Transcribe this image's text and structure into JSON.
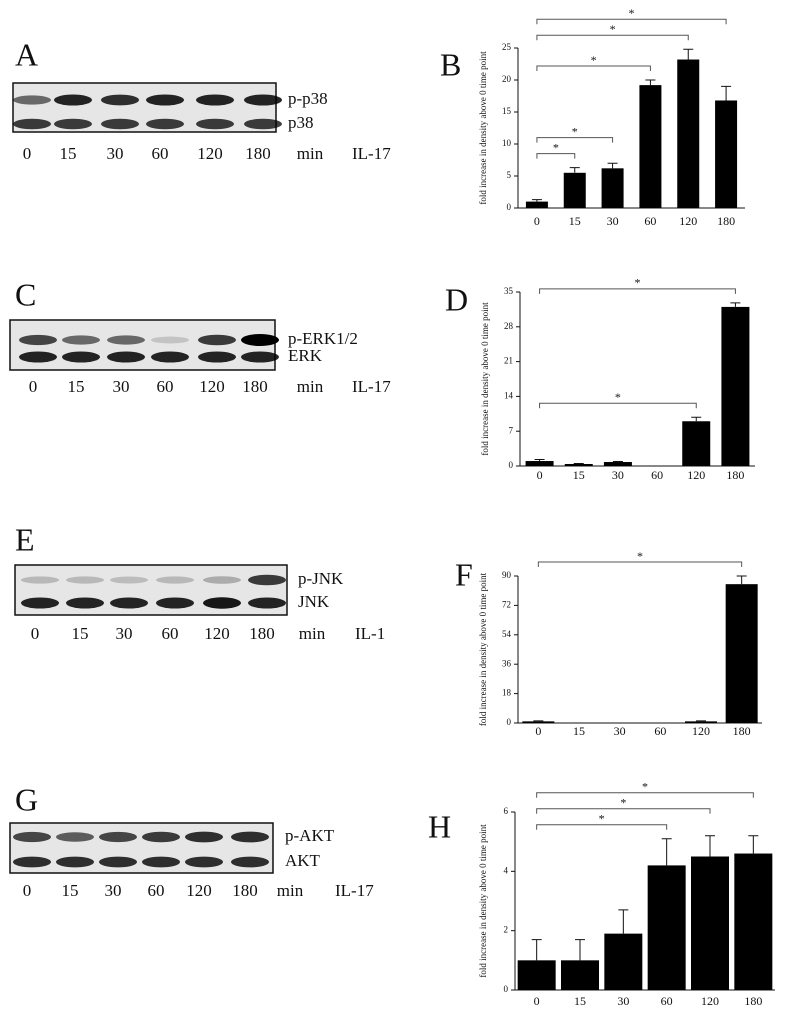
{
  "blots": [
    {
      "panel": "A",
      "bands": [
        "p-p38",
        "p38"
      ],
      "lanes": [
        "0",
        "15",
        "30",
        "60",
        "120",
        "180"
      ],
      "unit": "min",
      "treatment": "IL-17"
    },
    {
      "panel": "C",
      "bands": [
        "p-ERK1/2",
        "ERK"
      ],
      "lanes": [
        "0",
        "15",
        "30",
        "60",
        "120",
        "180"
      ],
      "unit": "min",
      "treatment": "IL-17"
    },
    {
      "panel": "E",
      "bands": [
        "p-JNK",
        "JNK"
      ],
      "lanes": [
        "0",
        "15",
        "30",
        "60",
        "120",
        "180"
      ],
      "unit": "min",
      "treatment": "IL-1"
    },
    {
      "panel": "G",
      "bands": [
        "p-AKT",
        "AKT"
      ],
      "lanes": [
        "0",
        "15",
        "30",
        "60",
        "120",
        "180"
      ],
      "unit": "min",
      "treatment": "IL-17"
    }
  ],
  "chart_data": [
    {
      "type": "bar",
      "panel": "B",
      "ylabel": "fold increase in density above 0 time point",
      "color": "#000000",
      "categories": [
        "0",
        "15",
        "30",
        "60",
        "120",
        "180"
      ],
      "values": [
        1,
        5.5,
        6.2,
        19.2,
        23.2,
        16.8
      ],
      "errors": [
        0.3,
        0.8,
        0.8,
        0.8,
        1.6,
        2.2
      ],
      "ylim": [
        0,
        25
      ],
      "yticks": [
        0,
        5,
        10,
        15,
        20,
        25
      ],
      "brackets": [
        {
          "text": "*",
          "from": 0,
          "to": 1
        },
        {
          "text": "*",
          "from": 0,
          "to": 2
        },
        {
          "text": "*",
          "from": 0,
          "to": 3
        },
        {
          "text": "*",
          "from": 0,
          "to": 4
        },
        {
          "text": "*",
          "from": 0,
          "to": 5
        }
      ]
    },
    {
      "type": "bar",
      "panel": "D",
      "ylabel": "fold increase in density above 0 time point",
      "color": "#000000",
      "categories": [
        "0",
        "15",
        "30",
        "60",
        "120",
        "180"
      ],
      "values": [
        1,
        0.4,
        0.8,
        0,
        9,
        32
      ],
      "errors": [
        0.3,
        0.1,
        0.1,
        0,
        0.8,
        0.8
      ],
      "ylim": [
        0,
        35
      ],
      "yticks": [
        0,
        7,
        14,
        21,
        28,
        35
      ],
      "brackets": [
        {
          "text": "*",
          "from": 0,
          "to": 4
        },
        {
          "text": "*",
          "from": 0,
          "to": 5
        }
      ]
    },
    {
      "type": "bar",
      "panel": "F",
      "ylabel": "fold increase in density above 0 time point",
      "color": "#000000",
      "categories": [
        "0",
        "15",
        "30",
        "60",
        "120",
        "180"
      ],
      "values": [
        1,
        0,
        0,
        0,
        1,
        85
      ],
      "errors": [
        0.3,
        0,
        0,
        0,
        0.3,
        5
      ],
      "ylim": [
        0,
        90
      ],
      "yticks": [
        0,
        18,
        36,
        54,
        72,
        90
      ],
      "brackets": [
        {
          "text": "*",
          "from": 0,
          "to": 5
        }
      ]
    },
    {
      "type": "bar",
      "panel": "H",
      "ylabel": "fold increase in density above 0 time point",
      "color": "#000000",
      "categories": [
        "0",
        "15",
        "30",
        "60",
        "120",
        "180"
      ],
      "values": [
        1,
        1,
        1.9,
        4.2,
        4.5,
        4.6
      ],
      "errors": [
        0.7,
        0.7,
        0.8,
        0.9,
        0.7,
        0.6
      ],
      "ylim": [
        0,
        6
      ],
      "yticks": [
        0,
        2,
        4,
        6
      ],
      "brackets": [
        {
          "text": "*",
          "from": 0,
          "to": 3
        },
        {
          "text": "*",
          "from": 0,
          "to": 4
        },
        {
          "text": "*",
          "from": 0,
          "to": 5
        }
      ]
    }
  ]
}
